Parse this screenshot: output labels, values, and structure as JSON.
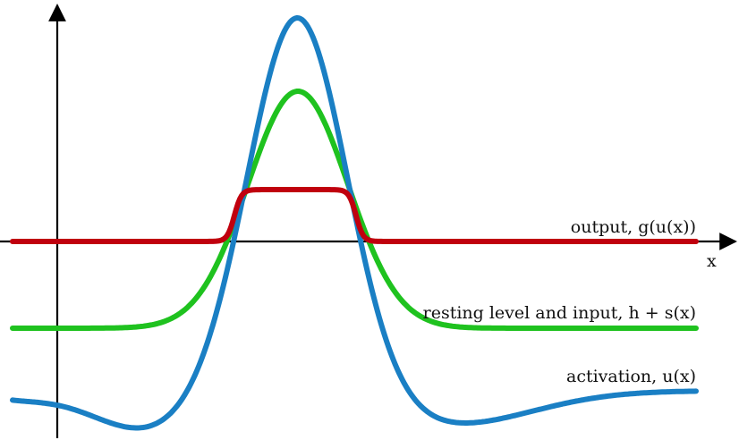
{
  "labels": {
    "output": "output, g(u(x))",
    "input": "resting level and input, h + s(x)",
    "activation": "activation, u(x)",
    "x_axis": "x"
  },
  "colors": {
    "output": "#c0000e",
    "input": "#1fc21f",
    "activation": "#1a7fc4",
    "axis": "#000000"
  }
}
